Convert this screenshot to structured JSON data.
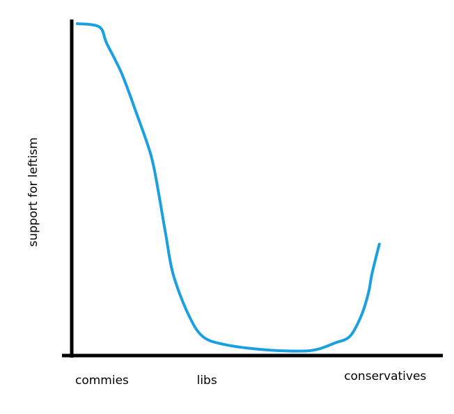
{
  "chart_data": {
    "type": "line",
    "title": "",
    "xlabel": "",
    "ylabel": "support for leftism",
    "categories": [
      "commies",
      "libs",
      "conservatives"
    ],
    "category_positions": [
      0,
      0.33,
      0.73
    ],
    "xlim": [
      0,
      1
    ],
    "ylim": [
      0,
      1
    ],
    "grid": false,
    "legend": "none",
    "colors": {
      "axis": "#000000",
      "line": "#1a9fe0"
    },
    "series": [
      {
        "x": [
          0,
          0.06,
          0.08,
          0.12,
          0.16,
          0.2,
          0.22,
          0.24,
          0.26,
          0.3,
          0.34,
          0.4,
          0.5,
          0.6,
          0.65,
          0.7,
          0.74,
          0.77,
          0.79,
          0.8,
          0.82
        ],
        "y": [
          1.0,
          0.99,
          0.94,
          0.85,
          0.73,
          0.6,
          0.49,
          0.36,
          0.24,
          0.12,
          0.05,
          0.025,
          0.01,
          0.005,
          0.01,
          0.03,
          0.05,
          0.11,
          0.18,
          0.24,
          0.33
        ]
      }
    ]
  }
}
